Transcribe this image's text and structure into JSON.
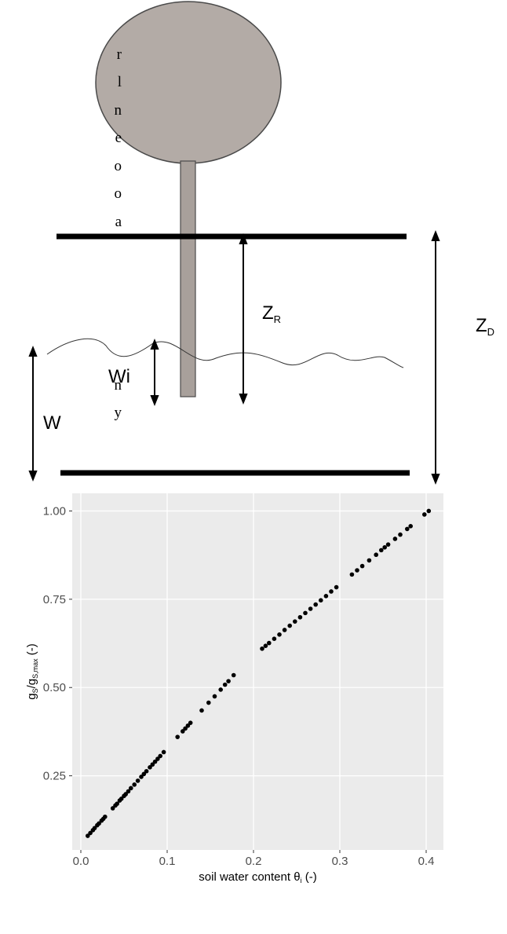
{
  "margin_text": [
    "r",
    "l",
    "n",
    "e",
    "o",
    "o",
    "a",
    "n",
    "y"
  ],
  "diagram": {
    "z_r": {
      "text": "Z",
      "sub": "R"
    },
    "z_d": {
      "text": "Z",
      "sub": "D"
    },
    "wi": {
      "text": "Wi"
    },
    "w": {
      "text": "W"
    }
  },
  "chart_data": {
    "type": "scatter",
    "xlabel": [
      {
        "text": "soil water content θ"
      },
      {
        "text": "i",
        "sub": true
      },
      {
        "text": " (-)"
      }
    ],
    "ylabel": [
      {
        "text": "g"
      },
      {
        "text": "S",
        "sub": true
      },
      {
        "text": "/g"
      },
      {
        "text": "S,max",
        "sub": true
      },
      {
        "text": " (-)"
      }
    ],
    "color": "#000000",
    "grid": true,
    "xlim": [
      -0.01,
      0.42
    ],
    "ylim": [
      0.04,
      1.05
    ],
    "xticks": [
      {
        "value": 0,
        "label": "0.0"
      },
      0.1,
      0.2,
      0.3,
      0.4
    ],
    "yticks": [
      0.25,
      {
        "value": 0.5,
        "label": "0.50"
      },
      0.75,
      {
        "value": 1,
        "label": "1.00"
      }
    ],
    "x": [
      0.008,
      0.011,
      0.014,
      0.016,
      0.019,
      0.021,
      0.024,
      0.026,
      0.028,
      0.037,
      0.04,
      0.042,
      0.045,
      0.047,
      0.05,
      0.052,
      0.055,
      0.058,
      0.062,
      0.066,
      0.07,
      0.073,
      0.076,
      0.08,
      0.083,
      0.086,
      0.089,
      0.092,
      0.096,
      0.112,
      0.118,
      0.121,
      0.124,
      0.127,
      0.14,
      0.148,
      0.155,
      0.162,
      0.167,
      0.171,
      0.177,
      0.21,
      0.214,
      0.218,
      0.224,
      0.23,
      0.236,
      0.242,
      0.248,
      0.254,
      0.26,
      0.266,
      0.272,
      0.278,
      0.284,
      0.29,
      0.296,
      0.314,
      0.32,
      0.326,
      0.334,
      0.342,
      0.348,
      0.352,
      0.356,
      0.364,
      0.37,
      0.378,
      0.382,
      0.398,
      0.403
    ],
    "values": [
      0.08,
      0.088,
      0.096,
      0.102,
      0.11,
      0.115,
      0.123,
      0.128,
      0.134,
      0.158,
      0.166,
      0.171,
      0.18,
      0.185,
      0.193,
      0.198,
      0.206,
      0.215,
      0.225,
      0.236,
      0.247,
      0.255,
      0.263,
      0.274,
      0.282,
      0.29,
      0.298,
      0.306,
      0.317,
      0.36,
      0.376,
      0.384,
      0.392,
      0.4,
      0.435,
      0.457,
      0.475,
      0.494,
      0.508,
      0.518,
      0.535,
      0.61,
      0.618,
      0.626,
      0.638,
      0.65,
      0.663,
      0.675,
      0.687,
      0.699,
      0.711,
      0.723,
      0.735,
      0.747,
      0.759,
      0.772,
      0.784,
      0.82,
      0.832,
      0.844,
      0.86,
      0.876,
      0.889,
      0.897,
      0.905,
      0.921,
      0.933,
      0.949,
      0.957,
      0.99,
      1.0
    ]
  }
}
